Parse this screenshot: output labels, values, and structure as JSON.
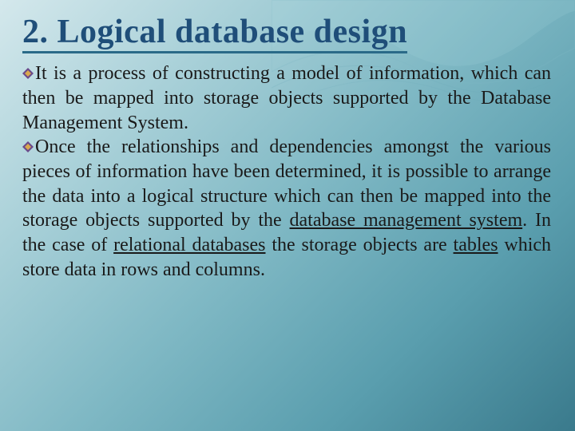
{
  "slide": {
    "title": "2. Logical database design",
    "title_color": "#1f4e79",
    "title_fontsize": 42,
    "title_underline_color": "#2a6a88",
    "body_fontsize": 24,
    "body_color": "#1a1a1a",
    "bullet_icon_color_outer": "#6b4a8a",
    "bullet_icon_color_inner": "#d9a84e",
    "background_gradient": [
      "#d4e8ec",
      "#a8d0d8",
      "#7fb8c4",
      "#5a9eae",
      "#3a7a8c"
    ],
    "wave_color": "#8fc4d0",
    "paragraphs": [
      {
        "text_parts": [
          {
            "text": "It is a process of constructing a model of information, which can then be mapped into storage objects supported by the Database Management System.",
            "link": false
          }
        ]
      },
      {
        "text_parts": [
          {
            "text": "Once the relationships and dependencies amongst the various pieces of information have been determined, it is possible to arrange the data into a logical structure which can then be mapped into the storage objects supported by the ",
            "link": false
          },
          {
            "text": "database management system",
            "link": true
          },
          {
            "text": ". In the case of ",
            "link": false
          },
          {
            "text": "relational databases",
            "link": true
          },
          {
            "text": " the storage objects are ",
            "link": false
          },
          {
            "text": "tables",
            "link": true
          },
          {
            "text": " which store data in rows and columns.",
            "link": false
          }
        ]
      }
    ]
  }
}
